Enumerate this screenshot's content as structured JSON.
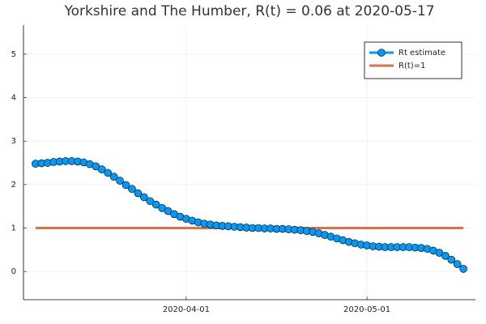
{
  "chart_data": {
    "type": "line",
    "title": "Yorkshire and The Humber, R(t) = 0.06 at 2020-05-17",
    "x": [
      "2020-03-07",
      "2020-03-08",
      "2020-03-09",
      "2020-03-10",
      "2020-03-11",
      "2020-03-12",
      "2020-03-13",
      "2020-03-14",
      "2020-03-15",
      "2020-03-16",
      "2020-03-17",
      "2020-03-18",
      "2020-03-19",
      "2020-03-20",
      "2020-03-21",
      "2020-03-22",
      "2020-03-23",
      "2020-03-24",
      "2020-03-25",
      "2020-03-26",
      "2020-03-27",
      "2020-03-28",
      "2020-03-29",
      "2020-03-30",
      "2020-03-31",
      "2020-04-01",
      "2020-04-02",
      "2020-04-03",
      "2020-04-04",
      "2020-04-05",
      "2020-04-06",
      "2020-04-07",
      "2020-04-08",
      "2020-04-09",
      "2020-04-10",
      "2020-04-11",
      "2020-04-12",
      "2020-04-13",
      "2020-04-14",
      "2020-04-15",
      "2020-04-16",
      "2020-04-17",
      "2020-04-18",
      "2020-04-19",
      "2020-04-20",
      "2020-04-21",
      "2020-04-22",
      "2020-04-23",
      "2020-04-24",
      "2020-04-25",
      "2020-04-26",
      "2020-04-27",
      "2020-04-28",
      "2020-04-29",
      "2020-04-30",
      "2020-05-01",
      "2020-05-02",
      "2020-05-03",
      "2020-05-04",
      "2020-05-05",
      "2020-05-06",
      "2020-05-07",
      "2020-05-08",
      "2020-05-09",
      "2020-05-10",
      "2020-05-11",
      "2020-05-12",
      "2020-05-13",
      "2020-05-14",
      "2020-05-15",
      "2020-05-16",
      "2020-05-17"
    ],
    "series": [
      {
        "name": "Rt estimate",
        "color": "#009af9",
        "marker": true,
        "values": [
          2.48,
          2.49,
          2.5,
          2.52,
          2.53,
          2.54,
          2.54,
          2.53,
          2.51,
          2.47,
          2.42,
          2.35,
          2.27,
          2.18,
          2.09,
          1.99,
          1.9,
          1.8,
          1.71,
          1.62,
          1.54,
          1.46,
          1.39,
          1.32,
          1.26,
          1.21,
          1.17,
          1.13,
          1.1,
          1.08,
          1.06,
          1.05,
          1.04,
          1.03,
          1.02,
          1.01,
          1.0,
          1.0,
          0.99,
          0.99,
          0.98,
          0.98,
          0.97,
          0.96,
          0.95,
          0.93,
          0.91,
          0.88,
          0.84,
          0.8,
          0.76,
          0.72,
          0.68,
          0.65,
          0.62,
          0.6,
          0.58,
          0.57,
          0.56,
          0.56,
          0.56,
          0.56,
          0.56,
          0.55,
          0.54,
          0.52,
          0.48,
          0.43,
          0.36,
          0.27,
          0.17,
          0.06
        ]
      },
      {
        "name": "R(t)=1",
        "color": "#e26f46",
        "marker": false,
        "values": [
          1,
          1,
          1,
          1,
          1,
          1,
          1,
          1,
          1,
          1,
          1,
          1,
          1,
          1,
          1,
          1,
          1,
          1,
          1,
          1,
          1,
          1,
          1,
          1,
          1,
          1,
          1,
          1,
          1,
          1,
          1,
          1,
          1,
          1,
          1,
          1,
          1,
          1,
          1,
          1,
          1,
          1,
          1,
          1,
          1,
          1,
          1,
          1,
          1,
          1,
          1,
          1,
          1,
          1,
          1,
          1,
          1,
          1,
          1,
          1,
          1,
          1,
          1,
          1,
          1,
          1,
          1,
          1,
          1,
          1,
          1,
          1
        ]
      }
    ],
    "xlim": [
      "2020-03-05",
      "2020-05-19"
    ],
    "xticks": [
      "2020-04-01",
      "2020-05-01"
    ],
    "ylim": [
      -0.65,
      5.67
    ],
    "yticks": [
      0,
      1,
      2,
      3,
      4,
      5
    ],
    "grid": true,
    "legend": "top-right"
  }
}
